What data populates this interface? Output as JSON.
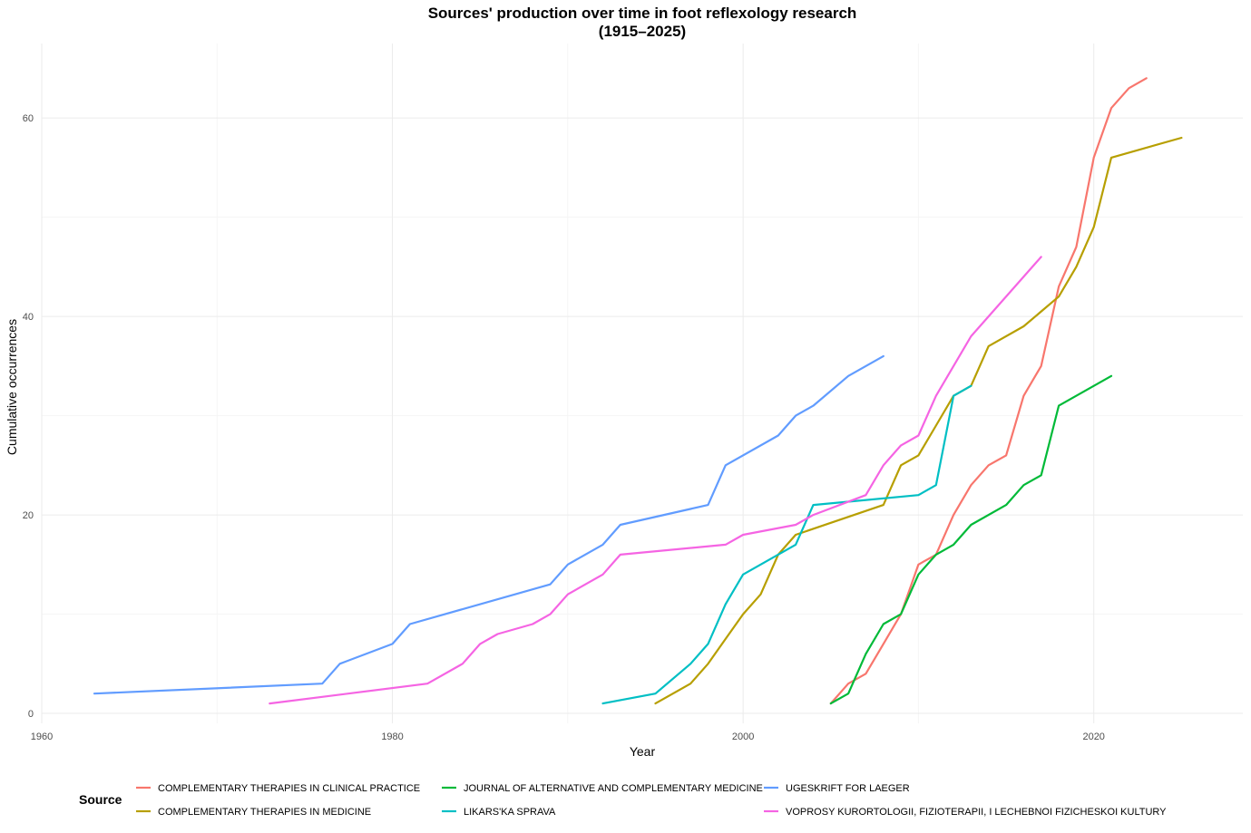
{
  "chart_data": {
    "type": "line",
    "title": "Sources' production over time in foot reflexology research",
    "subtitle": "(1915–2025)",
    "xlabel": "Year",
    "ylabel": "Cumulative occurrences",
    "xlim": [
      1960,
      2028.5
    ],
    "ylim": [
      -1,
      67.5
    ],
    "x_ticks": [
      1960,
      1980,
      2000,
      2020
    ],
    "y_ticks": [
      0,
      20,
      40,
      60
    ],
    "x_minor": [
      1970,
      1990,
      2010
    ],
    "y_minor": [
      10,
      30,
      50
    ],
    "grid": true,
    "legend": {
      "title": "Source",
      "position": "bottom"
    },
    "series": [
      {
        "name": "COMPLEMENTARY THERAPIES IN CLINICAL PRACTICE",
        "color": "#F8766D",
        "x": [
          2005,
          2006,
          2007,
          2008,
          2009,
          2010,
          2011,
          2012,
          2013,
          2014,
          2015,
          2016,
          2017,
          2018,
          2019,
          2020,
          2021,
          2022,
          2023
        ],
        "y": [
          1,
          3,
          4,
          7,
          10,
          15,
          16,
          20,
          23,
          25,
          26,
          32,
          35,
          43,
          47,
          56,
          61,
          63,
          64
        ]
      },
      {
        "name": "COMPLEMENTARY THERAPIES IN MEDICINE",
        "color": "#B79F00",
        "x": [
          1995,
          1997,
          1998,
          1999,
          2000,
          2001,
          2002,
          2003,
          2008,
          2009,
          2010,
          2011,
          2012,
          2013,
          2014,
          2016,
          2018,
          2019,
          2020,
          2021,
          2025
        ],
        "y": [
          1,
          3,
          5,
          7.5,
          10,
          12,
          16,
          18,
          21,
          25,
          26,
          29,
          32,
          33,
          37,
          39,
          42,
          45,
          49,
          56,
          58
        ]
      },
      {
        "name": "JOURNAL OF ALTERNATIVE AND COMPLEMENTARY MEDICINE",
        "color": "#00BA38",
        "x": [
          2005,
          2006,
          2007,
          2008,
          2009,
          2010,
          2011,
          2012,
          2013,
          2015,
          2016,
          2017,
          2018,
          2021
        ],
        "y": [
          1,
          2,
          6,
          9,
          10,
          14,
          16,
          17,
          19,
          21,
          23,
          24,
          31,
          34
        ]
      },
      {
        "name": "LIKARS'KA SPRAVA",
        "color": "#00BFC4",
        "x": [
          1992,
          1995,
          1997,
          1998,
          1999,
          2000,
          2003,
          2004,
          2010,
          2011,
          2012,
          2013
        ],
        "y": [
          1,
          2,
          5,
          7,
          11,
          14,
          17,
          21,
          22,
          23,
          32,
          33
        ]
      },
      {
        "name": "UGESKRIFT FOR LAEGER",
        "color": "#619CFF",
        "x": [
          1963,
          1976,
          1977,
          1980,
          1981,
          1989,
          1990,
          1992,
          1993,
          1998,
          1999,
          2002,
          2003,
          2004,
          2006,
          2008
        ],
        "y": [
          2,
          3,
          5,
          7,
          9,
          13,
          15,
          17,
          19,
          21,
          25,
          28,
          30,
          31,
          34,
          36
        ]
      },
      {
        "name": "VOPROSY KURORTOLOGII, FIZIOTERAPII, I LECHEBNOI FIZICHESKOI KULTURY",
        "color": "#F564E3",
        "x": [
          1973,
          1982,
          1984,
          1985,
          1986,
          1988,
          1989,
          1990,
          1992,
          1993,
          1999,
          2000,
          2003,
          2004,
          2007,
          2008,
          2009,
          2010,
          2011,
          2013,
          2017
        ],
        "y": [
          1,
          3,
          5,
          7,
          8,
          9,
          10,
          12,
          14,
          16,
          17,
          18,
          19,
          20,
          22,
          25,
          27,
          28,
          32,
          38,
          46
        ]
      }
    ]
  }
}
